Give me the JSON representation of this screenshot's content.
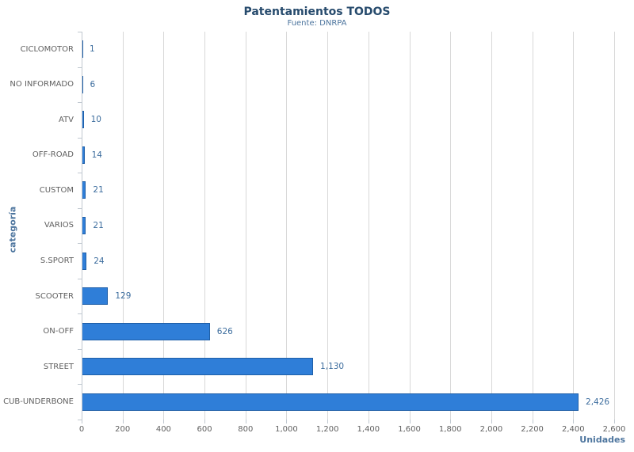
{
  "chart": {
    "colors": {
      "title": "#274b6d",
      "subtitle": "#4d759e",
      "axis_title": "#4d759e",
      "bar_fill": "#2f7ed8",
      "bar_border": "#1f5fa8",
      "data_label": "#3d6d9e",
      "tick_label": "#606060",
      "gridline": "#d8d8d8",
      "axis_line": "#c0c8d0"
    }
  },
  "chart_data": {
    "type": "bar",
    "orientation": "horizontal",
    "title": "Patentamientos TODOS",
    "subtitle": "Fuente: DNRPA",
    "xlabel": "Unidades",
    "ylabel": "categoría",
    "categories": [
      "CICLOMOTOR",
      "NO INFORMADO",
      "ATV",
      "OFF-ROAD",
      "CUSTOM",
      "VARIOS",
      "S.SPORT",
      "SCOOTER",
      "ON-OFF",
      "STREET",
      "CUB-UNDERBONE"
    ],
    "values": [
      1,
      6,
      10,
      14,
      21,
      21,
      24,
      129,
      626,
      1130,
      2426
    ],
    "data_labels": [
      "1",
      "6",
      "10",
      "14",
      "21",
      "21",
      "24",
      "129",
      "626",
      "1,130",
      "2,426"
    ],
    "value_axis_range": [
      0,
      2600
    ],
    "value_axis_ticks": [
      "0",
      "200",
      "400",
      "600",
      "800",
      "1,000",
      "1,200",
      "1,400",
      "1,600",
      "1,800",
      "2,000",
      "2,200",
      "2,400",
      "2,600"
    ],
    "grid": "vertical-only",
    "legend": "none"
  }
}
